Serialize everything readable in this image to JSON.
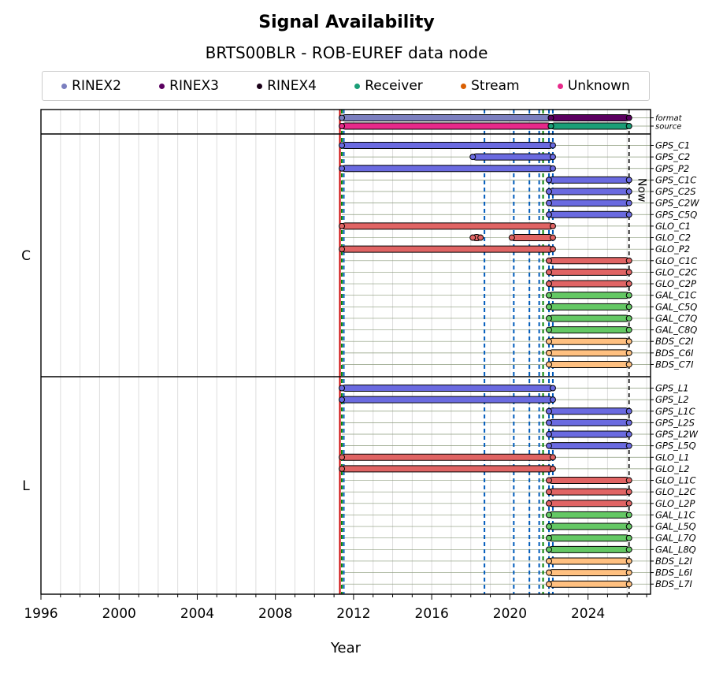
{
  "title": "Signal Availability",
  "subtitle": "BRTS00BLR - ROB-EUREF data node",
  "legend": [
    {
      "label": "RINEX2",
      "color": "#7b7fbf"
    },
    {
      "label": "RINEX3",
      "color": "#5b0060"
    },
    {
      "label": "RINEX4",
      "color": "#1a0018"
    },
    {
      "label": "Receiver",
      "color": "#1a9e77"
    },
    {
      "label": "Stream",
      "color": "#d95f02"
    },
    {
      "label": "Unknown",
      "color": "#e7298a"
    }
  ],
  "chart_data": {
    "type": "timeline",
    "xlabel": "Year",
    "xlim": [
      1996,
      2027.2
    ],
    "xticks": [
      "1996",
      "2000",
      "2004",
      "2008",
      "2012",
      "2016",
      "2020",
      "2024"
    ],
    "now_label": "Now",
    "now_year": 2026.1,
    "groups": [
      {
        "name": "",
        "rows": [
          "format",
          "source"
        ]
      },
      {
        "name": "C",
        "rows": [
          "GPS_C1",
          "GPS_C2",
          "GPS_P2",
          "GPS_C1C",
          "GPS_C2S",
          "GPS_C2W",
          "GPS_C5Q",
          "GLO_C1",
          "GLO_C2",
          "GLO_P2",
          "GLO_C1C",
          "GLO_C2C",
          "GLO_C2P",
          "GAL_C1C",
          "GAL_C5Q",
          "GAL_C7Q",
          "GAL_C8Q",
          "BDS_C2I",
          "BDS_C6I",
          "BDS_C7I"
        ]
      },
      {
        "name": "L",
        "rows": [
          "GPS_L1",
          "GPS_L2",
          "GPS_L1C",
          "GPS_L2S",
          "GPS_L2W",
          "GPS_L5Q",
          "GLO_L1",
          "GLO_L2",
          "GLO_L1C",
          "GLO_L2C",
          "GLO_L2P",
          "GAL_L1C",
          "GAL_L5Q",
          "GAL_L7Q",
          "GAL_L8Q",
          "BDS_L2I",
          "BDS_L6I",
          "BDS_L7I"
        ]
      }
    ],
    "event_lines": [
      {
        "year": 2011.3,
        "color": "#cc0000"
      },
      {
        "year": 2011.4,
        "color": "#008000"
      },
      {
        "year": 2011.5,
        "color": "#005bbb"
      },
      {
        "year": 2018.7,
        "color": "#005bbb"
      },
      {
        "year": 2020.2,
        "color": "#005bbb"
      },
      {
        "year": 2021.0,
        "color": "#005bbb"
      },
      {
        "year": 2021.5,
        "color": "#005bbb"
      },
      {
        "year": 2021.7,
        "color": "#008000"
      },
      {
        "year": 2022.0,
        "color": "#005bbb"
      },
      {
        "year": 2022.2,
        "color": "#005bbb"
      }
    ],
    "series_colors": {
      "GPS": "#6a6ae0",
      "GLO": "#e06464",
      "GAL": "#64c864",
      "BDS": "#ffc080",
      "format": "#7b7fbf",
      "source": "#e7298a"
    },
    "bars": [
      {
        "row": "format",
        "start": 2011.4,
        "end": 2022.1,
        "color": "#7b7fbf"
      },
      {
        "row": "format",
        "start": 2022.1,
        "end": 2026.1,
        "color": "#5b0060"
      },
      {
        "row": "source",
        "start": 2011.4,
        "end": 2022.1,
        "color": "#e7298a"
      },
      {
        "row": "source",
        "start": 2022.1,
        "end": 2026.1,
        "color": "#1a9e77"
      },
      {
        "row": "GPS_C1",
        "start": 2011.4,
        "end": 2022.2,
        "color": "#6a6ae0"
      },
      {
        "row": "GPS_C2",
        "start": 2018.1,
        "end": 2022.2,
        "color": "#6a6ae0"
      },
      {
        "row": "GPS_P2",
        "start": 2011.4,
        "end": 2022.2,
        "color": "#6a6ae0"
      },
      {
        "row": "GPS_C1C",
        "start": 2022.0,
        "end": 2026.1,
        "color": "#6a6ae0"
      },
      {
        "row": "GPS_C2S",
        "start": 2022.0,
        "end": 2026.1,
        "color": "#6a6ae0"
      },
      {
        "row": "GPS_C2W",
        "start": 2022.0,
        "end": 2026.1,
        "color": "#6a6ae0"
      },
      {
        "row": "GPS_C5Q",
        "start": 2022.0,
        "end": 2026.1,
        "color": "#6a6ae0"
      },
      {
        "row": "GLO_C1",
        "start": 2011.4,
        "end": 2022.2,
        "color": "#e06464"
      },
      {
        "row": "GLO_C2",
        "start": 2018.1,
        "end": 2018.5,
        "color": "#e06464"
      },
      {
        "row": "GLO_C2",
        "start": 2020.1,
        "end": 2022.2,
        "color": "#e06464"
      },
      {
        "row": "GLO_P2",
        "start": 2011.4,
        "end": 2022.2,
        "color": "#e06464"
      },
      {
        "row": "GLO_C1C",
        "start": 2022.0,
        "end": 2026.1,
        "color": "#e06464"
      },
      {
        "row": "GLO_C2C",
        "start": 2022.0,
        "end": 2026.1,
        "color": "#e06464"
      },
      {
        "row": "GLO_C2P",
        "start": 2022.0,
        "end": 2026.1,
        "color": "#e06464"
      },
      {
        "row": "GAL_C1C",
        "start": 2022.0,
        "end": 2026.1,
        "color": "#64c864"
      },
      {
        "row": "GAL_C5Q",
        "start": 2022.0,
        "end": 2026.1,
        "color": "#64c864"
      },
      {
        "row": "GAL_C7Q",
        "start": 2022.0,
        "end": 2026.1,
        "color": "#64c864"
      },
      {
        "row": "GAL_C8Q",
        "start": 2022.0,
        "end": 2026.1,
        "color": "#64c864"
      },
      {
        "row": "BDS_C2I",
        "start": 2022.0,
        "end": 2026.1,
        "color": "#ffc080"
      },
      {
        "row": "BDS_C6I",
        "start": 2022.0,
        "end": 2026.1,
        "color": "#ffc080"
      },
      {
        "row": "BDS_C7I",
        "start": 2022.0,
        "end": 2026.1,
        "color": "#ffc080"
      },
      {
        "row": "GPS_L1",
        "start": 2011.4,
        "end": 2022.2,
        "color": "#6a6ae0"
      },
      {
        "row": "GPS_L2",
        "start": 2011.4,
        "end": 2022.2,
        "color": "#6a6ae0"
      },
      {
        "row": "GPS_L1C",
        "start": 2022.0,
        "end": 2026.1,
        "color": "#6a6ae0"
      },
      {
        "row": "GPS_L2S",
        "start": 2022.0,
        "end": 2026.1,
        "color": "#6a6ae0"
      },
      {
        "row": "GPS_L2W",
        "start": 2022.0,
        "end": 2026.1,
        "color": "#6a6ae0"
      },
      {
        "row": "GPS_L5Q",
        "start": 2022.0,
        "end": 2026.1,
        "color": "#6a6ae0"
      },
      {
        "row": "GLO_L1",
        "start": 2011.4,
        "end": 2022.2,
        "color": "#e06464"
      },
      {
        "row": "GLO_L2",
        "start": 2011.4,
        "end": 2022.2,
        "color": "#e06464"
      },
      {
        "row": "GLO_L1C",
        "start": 2022.0,
        "end": 2026.1,
        "color": "#e06464"
      },
      {
        "row": "GLO_L2C",
        "start": 2022.0,
        "end": 2026.1,
        "color": "#e06464"
      },
      {
        "row": "GLO_L2P",
        "start": 2022.0,
        "end": 2026.1,
        "color": "#e06464"
      },
      {
        "row": "GAL_L1C",
        "start": 2022.0,
        "end": 2026.1,
        "color": "#64c864"
      },
      {
        "row": "GAL_L5Q",
        "start": 2022.0,
        "end": 2026.1,
        "color": "#64c864"
      },
      {
        "row": "GAL_L7Q",
        "start": 2022.0,
        "end": 2026.1,
        "color": "#64c864"
      },
      {
        "row": "GAL_L8Q",
        "start": 2022.0,
        "end": 2026.1,
        "color": "#64c864"
      },
      {
        "row": "BDS_L2I",
        "start": 2022.0,
        "end": 2026.1,
        "color": "#ffc080"
      },
      {
        "row": "BDS_L6I",
        "start": 2022.0,
        "end": 2026.1,
        "color": "#ffc080"
      },
      {
        "row": "BDS_L7I",
        "start": 2022.0,
        "end": 2026.1,
        "color": "#ffc080"
      }
    ]
  }
}
